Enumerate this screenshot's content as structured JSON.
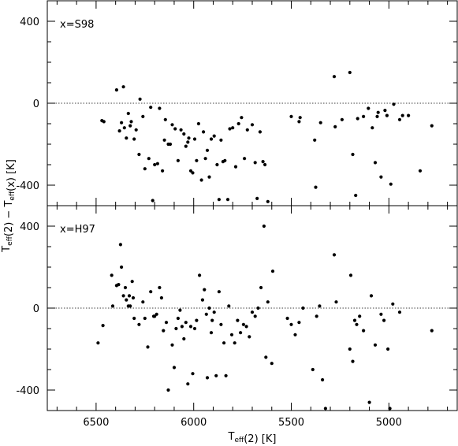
{
  "chart_data": [
    {
      "type": "scatter",
      "panel_label": "x=S98",
      "xlim": [
        6750,
        4650
      ],
      "ylim": [
        -500,
        500
      ],
      "x_ticks": [
        6500,
        6000,
        5500,
        5000
      ],
      "y_ticks": [
        -400,
        0,
        400
      ],
      "y_tick_labels": [
        "-400",
        "0",
        "400"
      ],
      "zero_line": true,
      "marker_color": "#000000",
      "points": [
        [
          6470,
          -85
        ],
        [
          6460,
          -90
        ],
        [
          6395,
          65
        ],
        [
          6380,
          -135
        ],
        [
          6370,
          -95
        ],
        [
          6360,
          80
        ],
        [
          6355,
          -120
        ],
        [
          6345,
          -170
        ],
        [
          6335,
          -50
        ],
        [
          6325,
          -110
        ],
        [
          6320,
          -90
        ],
        [
          6305,
          -175
        ],
        [
          6295,
          -130
        ],
        [
          6280,
          -250
        ],
        [
          6275,
          20
        ],
        [
          6260,
          -65
        ],
        [
          6250,
          -320
        ],
        [
          6230,
          -270
        ],
        [
          6220,
          -20
        ],
        [
          6210,
          -475
        ],
        [
          6200,
          -300
        ],
        [
          6185,
          -295
        ],
        [
          6175,
          -25
        ],
        [
          6160,
          -330
        ],
        [
          6150,
          -180
        ],
        [
          6145,
          -80
        ],
        [
          6130,
          -200
        ],
        [
          6120,
          -200
        ],
        [
          6110,
          -105
        ],
        [
          6095,
          -125
        ],
        [
          6080,
          -280
        ],
        [
          6065,
          -130
        ],
        [
          6050,
          -150
        ],
        [
          6040,
          -210
        ],
        [
          6030,
          -190
        ],
        [
          6025,
          -170
        ],
        [
          6015,
          -330
        ],
        [
          6005,
          -340
        ],
        [
          5995,
          -175
        ],
        [
          5985,
          -280
        ],
        [
          5975,
          -100
        ],
        [
          5960,
          -375
        ],
        [
          5950,
          -140
        ],
        [
          5940,
          -270
        ],
        [
          5930,
          -230
        ],
        [
          5920,
          -360
        ],
        [
          5910,
          -175
        ],
        [
          5895,
          -160
        ],
        [
          5880,
          -300
        ],
        [
          5870,
          -470
        ],
        [
          5860,
          -180
        ],
        [
          5850,
          -285
        ],
        [
          5840,
          -280
        ],
        [
          5825,
          -470
        ],
        [
          5815,
          -125
        ],
        [
          5800,
          -120
        ],
        [
          5785,
          -310
        ],
        [
          5770,
          -100
        ],
        [
          5755,
          -70
        ],
        [
          5740,
          -270
        ],
        [
          5725,
          -130
        ],
        [
          5700,
          -105
        ],
        [
          5685,
          -290
        ],
        [
          5675,
          -465
        ],
        [
          5660,
          -140
        ],
        [
          5645,
          -285
        ],
        [
          5635,
          -300
        ],
        [
          5620,
          -480
        ],
        [
          5500,
          -65
        ],
        [
          5460,
          -90
        ],
        [
          5455,
          -70
        ],
        [
          5380,
          -180
        ],
        [
          5375,
          -410
        ],
        [
          5350,
          -95
        ],
        [
          5280,
          130
        ],
        [
          5275,
          -115
        ],
        [
          5240,
          -80
        ],
        [
          5200,
          150
        ],
        [
          5185,
          -250
        ],
        [
          5170,
          -450
        ],
        [
          5160,
          -75
        ],
        [
          5130,
          -65
        ],
        [
          5105,
          -25
        ],
        [
          5085,
          -120
        ],
        [
          5070,
          -290
        ],
        [
          5060,
          -65
        ],
        [
          5055,
          -45
        ],
        [
          5040,
          -360
        ],
        [
          5020,
          -35
        ],
        [
          5010,
          -60
        ],
        [
          4990,
          -395
        ],
        [
          4975,
          -5
        ],
        [
          4945,
          -80
        ],
        [
          4930,
          -60
        ],
        [
          4900,
          -60
        ],
        [
          4840,
          -330
        ],
        [
          4780,
          -110
        ]
      ]
    },
    {
      "type": "scatter",
      "panel_label": "x=H97",
      "xlim": [
        6750,
        4650
      ],
      "ylim": [
        -500,
        500
      ],
      "x_ticks": [
        6500,
        6000,
        5500,
        5000
      ],
      "x_tick_labels": [
        "6500",
        "6000",
        "5500",
        "5000"
      ],
      "y_ticks": [
        -400,
        0,
        400
      ],
      "y_tick_labels": [
        "-400",
        "0",
        "400"
      ],
      "zero_line": true,
      "marker_color": "#000000",
      "points": [
        [
          6490,
          -170
        ],
        [
          6465,
          -85
        ],
        [
          6420,
          160
        ],
        [
          6415,
          10
        ],
        [
          6395,
          110
        ],
        [
          6385,
          115
        ],
        [
          6375,
          310
        ],
        [
          6370,
          200
        ],
        [
          6360,
          60
        ],
        [
          6350,
          100
        ],
        [
          6345,
          40
        ],
        [
          6335,
          10
        ],
        [
          6330,
          60
        ],
        [
          6325,
          10
        ],
        [
          6315,
          130
        ],
        [
          6310,
          50
        ],
        [
          6305,
          -50
        ],
        [
          6280,
          -80
        ],
        [
          6260,
          30
        ],
        [
          6250,
          -50
        ],
        [
          6235,
          -190
        ],
        [
          6220,
          80
        ],
        [
          6205,
          -40
        ],
        [
          6200,
          -40
        ],
        [
          6190,
          -30
        ],
        [
          6175,
          100
        ],
        [
          6165,
          50
        ],
        [
          6155,
          -110
        ],
        [
          6140,
          -70
        ],
        [
          6130,
          -400
        ],
        [
          6110,
          -180
        ],
        [
          6100,
          -290
        ],
        [
          6090,
          -100
        ],
        [
          6080,
          -50
        ],
        [
          6070,
          -10
        ],
        [
          6060,
          -90
        ],
        [
          6050,
          -150
        ],
        [
          6040,
          -70
        ],
        [
          6030,
          -370
        ],
        [
          6015,
          -90
        ],
        [
          6005,
          -320
        ],
        [
          5995,
          -100
        ],
        [
          5985,
          -60
        ],
        [
          5970,
          160
        ],
        [
          5955,
          40
        ],
        [
          5945,
          90
        ],
        [
          5935,
          -30
        ],
        [
          5930,
          -340
        ],
        [
          5920,
          0
        ],
        [
          5910,
          -120
        ],
        [
          5905,
          -60
        ],
        [
          5895,
          -20
        ],
        [
          5885,
          -330
        ],
        [
          5870,
          80
        ],
        [
          5860,
          -80
        ],
        [
          5845,
          -170
        ],
        [
          5835,
          -330
        ],
        [
          5820,
          10
        ],
        [
          5805,
          -130
        ],
        [
          5790,
          -170
        ],
        [
          5775,
          -60
        ],
        [
          5760,
          -120
        ],
        [
          5745,
          -80
        ],
        [
          5730,
          -90
        ],
        [
          5715,
          -140
        ],
        [
          5700,
          -20
        ],
        [
          5685,
          -40
        ],
        [
          5670,
          0
        ],
        [
          5655,
          100
        ],
        [
          5640,
          400
        ],
        [
          5630,
          -240
        ],
        [
          5620,
          30
        ],
        [
          5600,
          -270
        ],
        [
          5595,
          180
        ],
        [
          5520,
          -50
        ],
        [
          5500,
          -80
        ],
        [
          5480,
          -130
        ],
        [
          5460,
          -70
        ],
        [
          5440,
          0
        ],
        [
          5390,
          -300
        ],
        [
          5370,
          -40
        ],
        [
          5355,
          10
        ],
        [
          5340,
          -350
        ],
        [
          5325,
          -490
        ],
        [
          5280,
          260
        ],
        [
          5270,
          30
        ],
        [
          5200,
          -200
        ],
        [
          5195,
          160
        ],
        [
          5185,
          -260
        ],
        [
          5175,
          -60
        ],
        [
          5165,
          -80
        ],
        [
          5150,
          -40
        ],
        [
          5130,
          -110
        ],
        [
          5100,
          -460
        ],
        [
          5090,
          60
        ],
        [
          5070,
          -180
        ],
        [
          5040,
          -30
        ],
        [
          5025,
          -60
        ],
        [
          5005,
          -200
        ],
        [
          4995,
          -490
        ],
        [
          4980,
          20
        ],
        [
          4945,
          -20
        ],
        [
          4780,
          -110
        ]
      ]
    }
  ],
  "axes": {
    "xlabel": "T_eff(2)  [K]",
    "ylabel": "T_eff(2) − T_eff(x)  [K]"
  }
}
